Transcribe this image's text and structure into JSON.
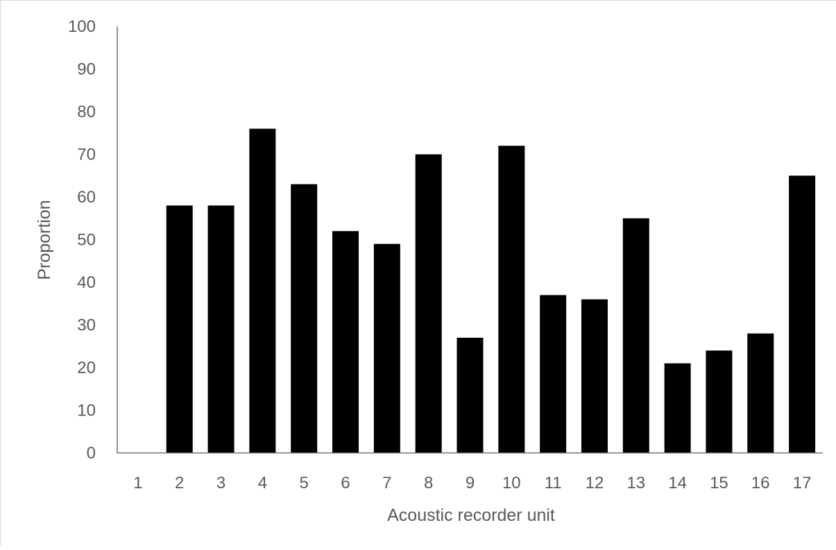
{
  "chart_data": {
    "type": "bar",
    "title": "",
    "xlabel": "Acoustic recorder unit",
    "ylabel": "Proportion",
    "categories": [
      "1",
      "2",
      "3",
      "4",
      "5",
      "6",
      "7",
      "8",
      "9",
      "10",
      "11",
      "12",
      "13",
      "14",
      "15",
      "16",
      "17"
    ],
    "values": [
      0,
      58,
      58,
      76,
      63,
      52,
      49,
      70,
      27,
      72,
      37,
      36,
      55,
      21,
      24,
      28,
      65
    ],
    "ylim": [
      0,
      100
    ],
    "yticks": [
      0,
      10,
      20,
      30,
      40,
      50,
      60,
      70,
      80,
      90,
      100
    ],
    "grid": false,
    "legend": "none",
    "bar_color": "#000000",
    "axis_color": "#595959",
    "text_color": "#595959"
  }
}
